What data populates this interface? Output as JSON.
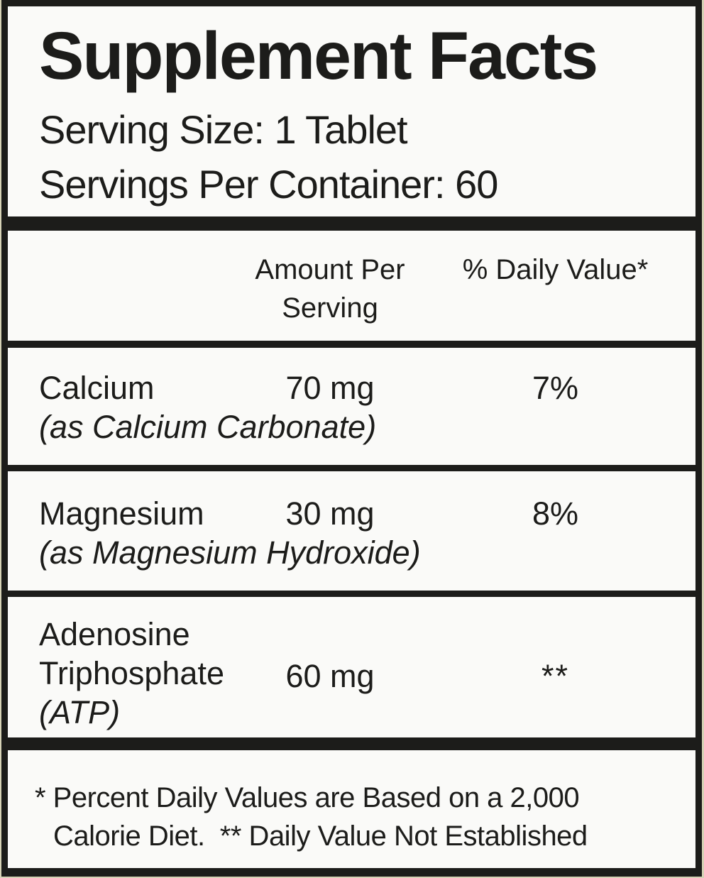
{
  "colors": {
    "edge": "#d6d2b6",
    "panel": "#fafaf8",
    "ink": "#1c1c1a"
  },
  "header": {
    "title": "Supplement Facts",
    "serving_size": "Serving Size: 1 Tablet",
    "servings_per_container": "Servings Per Container: 60"
  },
  "columns": {
    "amount_per_serving": "Amount Per Serving",
    "daily_value": "% Daily Value*"
  },
  "rows": [
    {
      "name": "Calcium",
      "form": "(as Calcium Carbonate)",
      "amount": "70 mg",
      "daily_value": "7%"
    },
    {
      "name": "Magnesium",
      "form": "(as Magnesium Hydroxide)",
      "amount": "30 mg",
      "daily_value": "8%"
    },
    {
      "name": "Adenosine Triphosphate",
      "form": "(ATP)",
      "amount": "60 mg",
      "daily_value": "**"
    }
  ],
  "footnote": {
    "line1": "* Percent Daily Values are Based on a 2,000",
    "line2": "Calorie Diet.  ** Daily Value Not Established"
  }
}
